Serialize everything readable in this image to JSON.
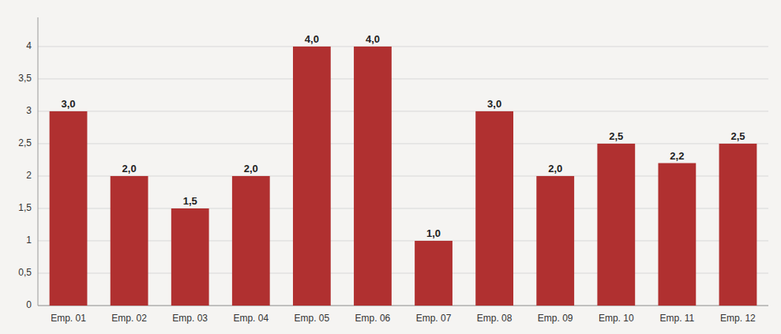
{
  "chart_data": {
    "type": "bar",
    "categories": [
      "Emp. 01",
      "Emp. 02",
      "Emp. 03",
      "Emp. 04",
      "Emp. 05",
      "Emp. 06",
      "Emp. 07",
      "Emp. 08",
      "Emp. 09",
      "Emp. 10",
      "Emp. 11",
      "Emp. 12"
    ],
    "values": [
      3.0,
      2.0,
      1.5,
      2.0,
      4.0,
      4.0,
      1.0,
      3.0,
      2.0,
      2.5,
      2.2,
      2.5
    ],
    "value_labels": [
      "3,0",
      "2,0",
      "1,5",
      "2,0",
      "4,0",
      "4,0",
      "1,0",
      "3,0",
      "2,0",
      "2,5",
      "2,2",
      "2,5"
    ],
    "data_labels": true,
    "color": "#b03030",
    "ylim": [
      0,
      4.45
    ],
    "yticks": [
      0,
      {
        "value": 0.5,
        "label": "0,5"
      },
      1,
      {
        "value": 1.5,
        "label": "1,5"
      },
      2,
      {
        "value": 2.5,
        "label": "2,5"
      },
      3,
      {
        "value": 3.5,
        "label": "3,5"
      },
      4
    ],
    "grid": true
  }
}
